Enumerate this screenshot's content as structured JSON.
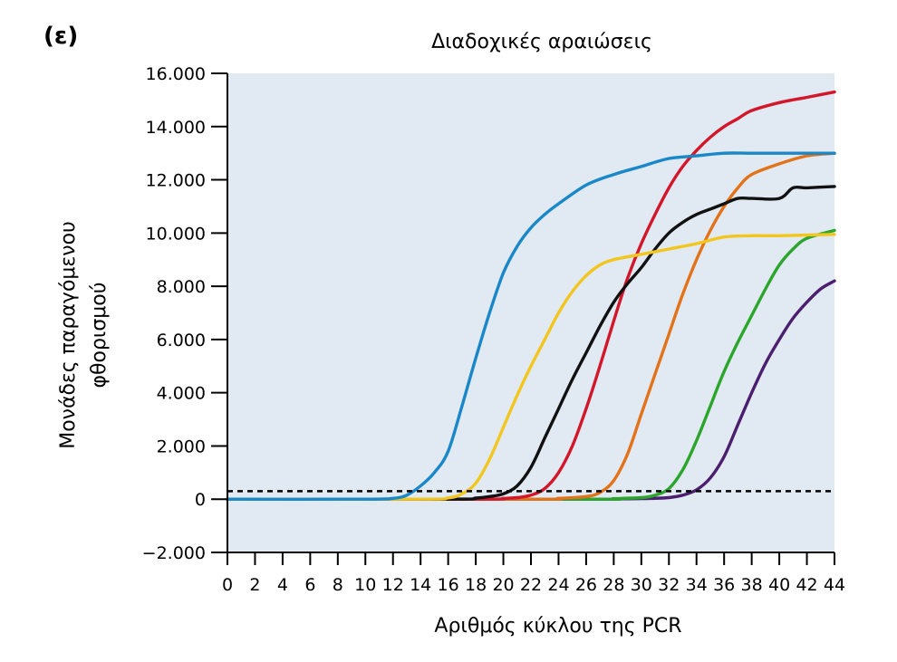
{
  "panel_label": "(ε)",
  "chart_data": {
    "type": "line",
    "title": "Διαδοχικές αραιώσεις",
    "xlabel": "Αριθμός κύκλου της PCR",
    "ylabel_lines": [
      "Μονάδες παραγόμενου",
      "φθορισμού"
    ],
    "xlim": [
      0,
      44
    ],
    "ylim": [
      -2000,
      16000
    ],
    "x_ticks": [
      0,
      2,
      4,
      6,
      8,
      10,
      12,
      14,
      16,
      18,
      20,
      22,
      24,
      26,
      28,
      30,
      32,
      34,
      36,
      38,
      40,
      42,
      44
    ],
    "x_tick_labels": [
      "0",
      "2",
      "4",
      "6",
      "8",
      "10",
      "12",
      "14",
      "16",
      "18",
      "20",
      "22",
      "24",
      "26",
      "28",
      "30",
      "32",
      "34",
      "36",
      "38",
      "40",
      "42",
      "44"
    ],
    "y_ticks": [
      -2000,
      0,
      2000,
      4000,
      6000,
      8000,
      10000,
      12000,
      14000,
      16000
    ],
    "y_tick_labels": [
      "−2.000",
      "0",
      "2.000",
      "4.000",
      "6.000",
      "8.000",
      "10.000",
      "12.000",
      "14.000",
      "16.000"
    ],
    "grid": false,
    "background_color": "#e1eaf2",
    "threshold": {
      "y": 300,
      "style": "dashed",
      "color": "#000000"
    },
    "series": [
      {
        "color": "#1a87c8",
        "points": [
          [
            0,
            0
          ],
          [
            10,
            0
          ],
          [
            12,
            30
          ],
          [
            13,
            150
          ],
          [
            14,
            500
          ],
          [
            15,
            1000
          ],
          [
            16,
            1800
          ],
          [
            17,
            3500
          ],
          [
            18,
            5300
          ],
          [
            19,
            7000
          ],
          [
            20,
            8500
          ],
          [
            21,
            9500
          ],
          [
            22,
            10200
          ],
          [
            23,
            10700
          ],
          [
            24,
            11100
          ],
          [
            26,
            11800
          ],
          [
            28,
            12200
          ],
          [
            30,
            12500
          ],
          [
            32,
            12800
          ],
          [
            34,
            12900
          ],
          [
            36,
            13000
          ],
          [
            38,
            13000
          ],
          [
            40,
            13000
          ],
          [
            44,
            13000
          ]
        ]
      },
      {
        "color": "#f2c61f",
        "points": [
          [
            0,
            0
          ],
          [
            14,
            0
          ],
          [
            16,
            50
          ],
          [
            17,
            200
          ],
          [
            18,
            600
          ],
          [
            19,
            1500
          ],
          [
            20,
            2700
          ],
          [
            21,
            3900
          ],
          [
            22,
            5000
          ],
          [
            23,
            6000
          ],
          [
            24,
            7000
          ],
          [
            25,
            7800
          ],
          [
            26,
            8400
          ],
          [
            27,
            8800
          ],
          [
            28,
            9000
          ],
          [
            30,
            9200
          ],
          [
            32,
            9400
          ],
          [
            34,
            9600
          ],
          [
            36,
            9850
          ],
          [
            38,
            9900
          ],
          [
            40,
            9900
          ],
          [
            44,
            9950
          ]
        ]
      },
      {
        "color": "#111111",
        "points": [
          [
            0,
            0
          ],
          [
            16,
            0
          ],
          [
            18,
            40
          ],
          [
            19,
            100
          ],
          [
            20,
            200
          ],
          [
            21,
            500
          ],
          [
            22,
            1200
          ],
          [
            23,
            2300
          ],
          [
            24,
            3400
          ],
          [
            25,
            4500
          ],
          [
            26,
            5500
          ],
          [
            27,
            6500
          ],
          [
            28,
            7400
          ],
          [
            29,
            8100
          ],
          [
            30,
            8700
          ],
          [
            31,
            9400
          ],
          [
            32,
            10000
          ],
          [
            33,
            10400
          ],
          [
            34,
            10700
          ],
          [
            35,
            10900
          ],
          [
            36,
            11100
          ],
          [
            37,
            11300
          ],
          [
            38,
            11300
          ],
          [
            40,
            11300
          ],
          [
            41,
            11700
          ],
          [
            42,
            11700
          ],
          [
            44,
            11750
          ]
        ]
      },
      {
        "color": "#d3172a",
        "points": [
          [
            0,
            0
          ],
          [
            18,
            0
          ],
          [
            20,
            30
          ],
          [
            21,
            60
          ],
          [
            22,
            150
          ],
          [
            23,
            400
          ],
          [
            24,
            1000
          ],
          [
            25,
            2000
          ],
          [
            26,
            3400
          ],
          [
            27,
            5000
          ],
          [
            28,
            6700
          ],
          [
            29,
            8300
          ],
          [
            30,
            9600
          ],
          [
            31,
            10700
          ],
          [
            32,
            11700
          ],
          [
            33,
            12500
          ],
          [
            34,
            13100
          ],
          [
            35,
            13600
          ],
          [
            36,
            14000
          ],
          [
            37,
            14300
          ],
          [
            38,
            14600
          ],
          [
            40,
            14900
          ],
          [
            42,
            15100
          ],
          [
            44,
            15300
          ]
        ]
      },
      {
        "color": "#e2731a",
        "points": [
          [
            0,
            0
          ],
          [
            22,
            0
          ],
          [
            24,
            30
          ],
          [
            26,
            100
          ],
          [
            27,
            250
          ],
          [
            28,
            700
          ],
          [
            29,
            1700
          ],
          [
            30,
            3200
          ],
          [
            31,
            4700
          ],
          [
            32,
            6200
          ],
          [
            33,
            7700
          ],
          [
            34,
            9000
          ],
          [
            35,
            10100
          ],
          [
            36,
            11000
          ],
          [
            37,
            11700
          ],
          [
            38,
            12200
          ],
          [
            40,
            12600
          ],
          [
            42,
            12900
          ],
          [
            44,
            13000
          ]
        ]
      },
      {
        "color": "#2ba52b",
        "points": [
          [
            0,
            0
          ],
          [
            26,
            0
          ],
          [
            28,
            20
          ],
          [
            30,
            60
          ],
          [
            31,
            150
          ],
          [
            32,
            400
          ],
          [
            33,
            1100
          ],
          [
            34,
            2200
          ],
          [
            35,
            3500
          ],
          [
            36,
            4800
          ],
          [
            37,
            5900
          ],
          [
            38,
            6900
          ],
          [
            39,
            7900
          ],
          [
            40,
            8800
          ],
          [
            41,
            9400
          ],
          [
            42,
            9800
          ],
          [
            44,
            10100
          ]
        ]
      },
      {
        "color": "#4b1e6e",
        "points": [
          [
            0,
            0
          ],
          [
            26,
            0
          ],
          [
            28,
            10
          ],
          [
            30,
            20
          ],
          [
            32,
            60
          ],
          [
            33,
            150
          ],
          [
            34,
            350
          ],
          [
            35,
            800
          ],
          [
            36,
            1600
          ],
          [
            37,
            2800
          ],
          [
            38,
            4000
          ],
          [
            39,
            5100
          ],
          [
            40,
            6000
          ],
          [
            41,
            6800
          ],
          [
            42,
            7400
          ],
          [
            43,
            7900
          ],
          [
            44,
            8200
          ]
        ]
      }
    ]
  }
}
